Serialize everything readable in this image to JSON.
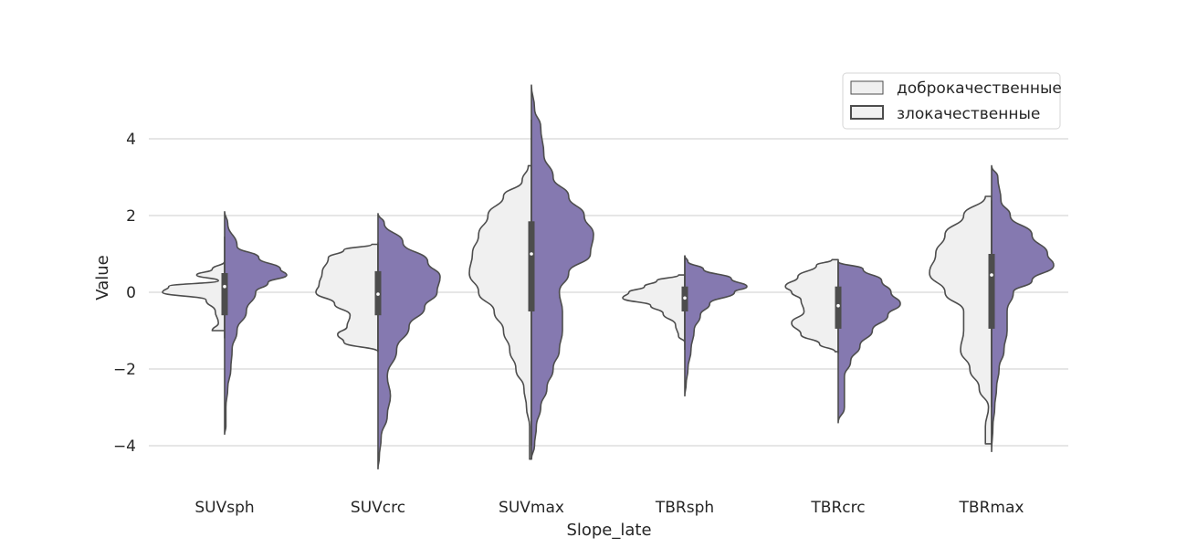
{
  "chart_data": {
    "type": "violin",
    "split": true,
    "xlabel": "Slope_late",
    "ylabel": "Value",
    "ylim": [
      -5,
      6
    ],
    "yticks": [
      -4,
      -2,
      0,
      2,
      4
    ],
    "grid": "horizontal",
    "legend_position": "upper-right",
    "colors": {
      "benign_fill": "#f0f0f0",
      "malignant_fill": "#8579b0",
      "line": "#4d4d4d",
      "grid": "#cccccc",
      "box": "#4d4d4d",
      "median": "#ffffff"
    },
    "categories": [
      "SUVsph",
      "SUVcrc",
      "SUVmax",
      "TBRsph",
      "TBRcrc",
      "TBRmax"
    ],
    "series": [
      {
        "name": "доброкачественные",
        "side": "left"
      },
      {
        "name": "злокачественные",
        "side": "right"
      }
    ],
    "violins": [
      {
        "category": "SUVsph",
        "benign": [
          [
            0.8,
            0
          ],
          [
            0.6,
            0.2
          ],
          [
            0.45,
            0.45
          ],
          [
            0.3,
            0.1
          ],
          [
            0.15,
            0.9
          ],
          [
            0.0,
            1.0
          ],
          [
            -0.2,
            0.3
          ],
          [
            -0.5,
            0.15
          ],
          [
            -0.8,
            0.1
          ],
          [
            -1.0,
            0.2
          ]
        ],
        "malignant": [
          [
            2.1,
            0
          ],
          [
            1.8,
            0.05
          ],
          [
            1.2,
            0.2
          ],
          [
            0.9,
            0.55
          ],
          [
            0.6,
            0.9
          ],
          [
            0.45,
            1.0
          ],
          [
            0.25,
            0.7
          ],
          [
            0.0,
            0.5
          ],
          [
            -0.5,
            0.35
          ],
          [
            -1.0,
            0.2
          ],
          [
            -1.5,
            0.12
          ],
          [
            -2.0,
            0.1
          ],
          [
            -2.5,
            0.05
          ],
          [
            -3.0,
            0.02
          ],
          [
            -3.5,
            0.02
          ],
          [
            -3.7,
            0
          ]
        ],
        "box": {
          "q1": -0.6,
          "median": 0.15,
          "q3": 0.5,
          "whisker_low": -1.2,
          "whisker_high": 1.45
        }
      },
      {
        "category": "SUVcrc",
        "benign": [
          [
            1.25,
            0.1
          ],
          [
            1.1,
            0.55
          ],
          [
            0.9,
            0.8
          ],
          [
            0.5,
            0.9
          ],
          [
            0.2,
            0.95
          ],
          [
            0.0,
            1.0
          ],
          [
            -0.3,
            0.7
          ],
          [
            -0.6,
            0.45
          ],
          [
            -0.9,
            0.5
          ],
          [
            -1.1,
            0.65
          ],
          [
            -1.3,
            0.55
          ],
          [
            -1.55,
            0
          ]
        ],
        "malignant": [
          [
            2.05,
            0
          ],
          [
            1.8,
            0.1
          ],
          [
            1.3,
            0.4
          ],
          [
            0.8,
            0.8
          ],
          [
            0.4,
            1.0
          ],
          [
            0.0,
            0.95
          ],
          [
            -0.4,
            0.75
          ],
          [
            -0.9,
            0.5
          ],
          [
            -1.5,
            0.3
          ],
          [
            -2.2,
            0.15
          ],
          [
            -2.7,
            0.2
          ],
          [
            -3.2,
            0.15
          ],
          [
            -3.8,
            0.05
          ],
          [
            -4.3,
            0.02
          ],
          [
            -4.6,
            0
          ]
        ],
        "box": {
          "q1": -0.6,
          "median": -0.05,
          "q3": 0.55,
          "whisker_low": -1.55,
          "whisker_high": 1.3
        }
      },
      {
        "category": "SUVmax",
        "benign": [
          [
            3.3,
            0.05
          ],
          [
            2.9,
            0.15
          ],
          [
            2.5,
            0.45
          ],
          [
            2.0,
            0.7
          ],
          [
            1.5,
            0.85
          ],
          [
            1.0,
            0.95
          ],
          [
            0.5,
            1.0
          ],
          [
            0.0,
            0.85
          ],
          [
            -0.5,
            0.6
          ],
          [
            -1.0,
            0.45
          ],
          [
            -1.5,
            0.35
          ],
          [
            -2.0,
            0.25
          ],
          [
            -2.5,
            0.12
          ],
          [
            -3.0,
            0.08
          ],
          [
            -3.5,
            0.03
          ],
          [
            -4.0,
            0.03
          ],
          [
            -4.35,
            0.03
          ]
        ],
        "malignant": [
          [
            5.4,
            0
          ],
          [
            4.8,
            0.05
          ],
          [
            4.3,
            0.15
          ],
          [
            3.6,
            0.2
          ],
          [
            3.0,
            0.35
          ],
          [
            2.5,
            0.6
          ],
          [
            2.0,
            0.85
          ],
          [
            1.5,
            1.0
          ],
          [
            1.0,
            0.95
          ],
          [
            0.5,
            0.6
          ],
          [
            0.0,
            0.45
          ],
          [
            -0.5,
            0.5
          ],
          [
            -1.0,
            0.5
          ],
          [
            -1.5,
            0.45
          ],
          [
            -2.0,
            0.35
          ],
          [
            -2.5,
            0.25
          ],
          [
            -3.0,
            0.15
          ],
          [
            -3.5,
            0.08
          ],
          [
            -4.0,
            0.05
          ],
          [
            -4.35,
            0
          ]
        ],
        "box": {
          "q1": -0.5,
          "median": 1.0,
          "q3": 1.85,
          "whisker_low": -4.0,
          "whisker_high": 4.5
        }
      },
      {
        "category": "TBRsph",
        "benign": [
          [
            0.45,
            0.1
          ],
          [
            0.3,
            0.45
          ],
          [
            0.15,
            0.65
          ],
          [
            0.0,
            0.9
          ],
          [
            -0.15,
            1.0
          ],
          [
            -0.35,
            0.55
          ],
          [
            -0.55,
            0.35
          ],
          [
            -0.85,
            0.15
          ],
          [
            -1.15,
            0.1
          ],
          [
            -1.3,
            0
          ]
        ],
        "malignant": [
          [
            0.95,
            0
          ],
          [
            0.8,
            0.05
          ],
          [
            0.6,
            0.3
          ],
          [
            0.35,
            0.75
          ],
          [
            0.15,
            1.0
          ],
          [
            0.0,
            0.8
          ],
          [
            -0.3,
            0.4
          ],
          [
            -0.6,
            0.25
          ],
          [
            -1.0,
            0.15
          ],
          [
            -1.5,
            0.1
          ],
          [
            -2.0,
            0.05
          ],
          [
            -2.4,
            0.02
          ],
          [
            -2.7,
            0
          ]
        ],
        "box": {
          "q1": -0.5,
          "median": -0.15,
          "q3": 0.15,
          "whisker_low": -1.5,
          "whisker_high": 0.95
        }
      },
      {
        "category": "TBRcrc",
        "benign": [
          [
            0.85,
            0.1
          ],
          [
            0.7,
            0.35
          ],
          [
            0.4,
            0.65
          ],
          [
            0.15,
            0.85
          ],
          [
            0.0,
            0.75
          ],
          [
            -0.2,
            0.6
          ],
          [
            -0.5,
            0.55
          ],
          [
            -0.8,
            0.75
          ],
          [
            -1.1,
            0.6
          ],
          [
            -1.35,
            0.3
          ],
          [
            -1.55,
            0.05
          ]
        ],
        "malignant": [
          [
            0.8,
            0
          ],
          [
            0.6,
            0.4
          ],
          [
            0.3,
            0.7
          ],
          [
            0.0,
            0.85
          ],
          [
            -0.3,
            1.0
          ],
          [
            -0.6,
            0.8
          ],
          [
            -1.0,
            0.55
          ],
          [
            -1.4,
            0.35
          ],
          [
            -1.8,
            0.2
          ],
          [
            -2.2,
            0.1
          ],
          [
            -2.6,
            0.1
          ],
          [
            -3.0,
            0.1
          ],
          [
            -3.4,
            0
          ]
        ],
        "box": {
          "q1": -0.95,
          "median": -0.35,
          "q3": 0.15,
          "whisker_low": -1.6,
          "whisker_high": 0.8
        }
      },
      {
        "category": "TBRmax",
        "benign": [
          [
            2.5,
            0.1
          ],
          [
            2.0,
            0.45
          ],
          [
            1.5,
            0.75
          ],
          [
            1.0,
            0.9
          ],
          [
            0.5,
            1.0
          ],
          [
            0.0,
            0.75
          ],
          [
            -0.5,
            0.45
          ],
          [
            -1.0,
            0.45
          ],
          [
            -1.5,
            0.5
          ],
          [
            -2.0,
            0.35
          ],
          [
            -2.5,
            0.2
          ],
          [
            -3.0,
            0.05
          ],
          [
            -3.5,
            0.1
          ],
          [
            -3.95,
            0.1
          ]
        ],
        "malignant": [
          [
            3.3,
            0
          ],
          [
            3.0,
            0.1
          ],
          [
            2.4,
            0.15
          ],
          [
            2.0,
            0.3
          ],
          [
            1.5,
            0.65
          ],
          [
            1.0,
            0.9
          ],
          [
            0.7,
            1.0
          ],
          [
            0.3,
            0.65
          ],
          [
            0.0,
            0.35
          ],
          [
            -0.5,
            0.25
          ],
          [
            -1.0,
            0.25
          ],
          [
            -1.5,
            0.2
          ],
          [
            -2.0,
            0.12
          ],
          [
            -2.5,
            0.08
          ],
          [
            -3.0,
            0.05
          ],
          [
            -3.5,
            0.02
          ],
          [
            -4.15,
            0
          ]
        ],
        "box": {
          "q1": -0.95,
          "median": 0.45,
          "q3": 1.0,
          "whisker_low": -3.0,
          "whisker_high": 2.4
        }
      }
    ]
  }
}
